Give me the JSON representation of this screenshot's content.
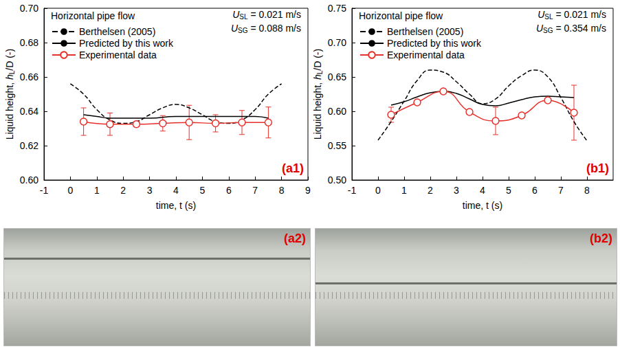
{
  "chart_data": [
    {
      "type": "line",
      "panel_label": "(a1)",
      "annotation": "Horizontal pipe flow",
      "conditions": [
        {
          "symbol": "U",
          "subscript": "SL",
          "text": " = 0.021 m/s"
        },
        {
          "symbol": "U",
          "subscript": "SG",
          "text": " = 0.088 m/s"
        }
      ],
      "x_label": "time, t (s)",
      "y_label": {
        "text": "Liquid height, ",
        "var": "h",
        "sub": "L",
        "rest": "/D (-)"
      },
      "xlim": [
        -1,
        9
      ],
      "xticks": [
        -1,
        0,
        1,
        2,
        3,
        4,
        5,
        6,
        7,
        8,
        9
      ],
      "ylim": [
        0.6,
        0.7
      ],
      "yticks": [
        {
          "value": 0.6,
          "label": "0.60"
        },
        {
          "value": 0.62,
          "label": "0.62"
        },
        {
          "value": 0.64,
          "label": "0.64"
        },
        {
          "value": 0.66,
          "label": "0.66"
        },
        {
          "value": 0.68,
          "label": "0.68"
        },
        {
          "value": 0.7,
          "label": "0.70"
        }
      ],
      "grid": false,
      "legend": "top-left",
      "series": [
        {
          "name": "Berthelsen (2005)",
          "color": "#000000",
          "line_style": "dashed",
          "marker": "none",
          "x": [
            0,
            0.5,
            1,
            1.5,
            2,
            2.5,
            3,
            3.5,
            4,
            4.5,
            5,
            5.5,
            6,
            6.5,
            7,
            7.5,
            8
          ],
          "values": [
            0.656,
            0.65,
            0.641,
            0.635,
            0.633,
            0.634,
            0.638,
            0.642,
            0.644,
            0.642,
            0.638,
            0.634,
            0.633,
            0.635,
            0.641,
            0.65,
            0.656
          ]
        },
        {
          "name": "Predicted by this work",
          "color": "#000000",
          "line_style": "solid",
          "marker": "none",
          "x": [
            0.5,
            1,
            1.5,
            2,
            3,
            4,
            5,
            6,
            7,
            7.5
          ],
          "values": [
            0.638,
            0.637,
            0.636,
            0.636,
            0.636,
            0.637,
            0.637,
            0.637,
            0.637,
            0.636
          ]
        },
        {
          "name": "Experimental data",
          "color": "#e8302a",
          "line_style": "solid",
          "marker": "circle",
          "x": [
            0.5,
            1.5,
            2.5,
            3.5,
            4.5,
            5.5,
            6.5,
            7.5
          ],
          "values": [
            0.634,
            0.6325,
            0.6325,
            0.633,
            0.6335,
            0.633,
            0.6335,
            0.6335
          ],
          "errors": [
            0.008,
            0.0065,
            0.0015,
            0.0045,
            0.01,
            0.005,
            0.007,
            0.009
          ]
        }
      ]
    },
    {
      "type": "line",
      "panel_label": "(b1)",
      "annotation": "Horizontal pipe flow",
      "conditions": [
        {
          "symbol": "U",
          "subscript": "SL",
          "text": " = 0.021 m/s"
        },
        {
          "symbol": "U",
          "subscript": "SG",
          "text": " = 0.354 m/s"
        }
      ],
      "x_label": "time, t (s)",
      "y_label": {
        "text": "Liquid height, ",
        "var": "h",
        "sub": "L",
        "rest": "/D (-)"
      },
      "xlim": [
        -1,
        9
      ],
      "xticks": [
        -1,
        0,
        1,
        2,
        3,
        4,
        5,
        6,
        7,
        8
      ],
      "ylim": [
        0.5,
        0.75
      ],
      "yticks": [
        {
          "value": 0.5,
          "label": "0.50"
        },
        {
          "value": 0.55,
          "label": "0.55"
        },
        {
          "value": 0.6,
          "label": "0.60"
        },
        {
          "value": 0.65,
          "label": "0.65"
        },
        {
          "value": 0.7,
          "label": "0.70"
        },
        {
          "value": 0.75,
          "label": "0.75"
        }
      ],
      "grid": false,
      "legend": "top-left",
      "series": [
        {
          "name": "Berthelsen (2005)",
          "color": "#000000",
          "line_style": "dashed",
          "marker": "none",
          "x": [
            0,
            0.5,
            1,
            1.5,
            2,
            2.5,
            3,
            3.5,
            4,
            4.5,
            5,
            5.5,
            6,
            6.5,
            7,
            7.5,
            8
          ],
          "values": [
            0.558,
            0.585,
            0.615,
            0.645,
            0.66,
            0.657,
            0.643,
            0.625,
            0.611,
            0.618,
            0.637,
            0.652,
            0.66,
            0.65,
            0.62,
            0.585,
            0.557
          ]
        },
        {
          "name": "Predicted by this work",
          "color": "#000000",
          "line_style": "solid",
          "marker": "none",
          "x": [
            0.5,
            1,
            1.5,
            2,
            2.5,
            3,
            3.5,
            4,
            4.5,
            5,
            5.5,
            6,
            6.5,
            7,
            7.5
          ],
          "values": [
            0.609,
            0.614,
            0.621,
            0.627,
            0.629,
            0.626,
            0.618,
            0.61,
            0.608,
            0.612,
            0.617,
            0.621,
            0.622,
            0.621,
            0.62
          ]
        },
        {
          "name": "Experimental data",
          "color": "#e8302a",
          "line_style": "solid",
          "marker": "circle",
          "x": [
            0.5,
            1.5,
            2.5,
            3.5,
            4.5,
            5.5,
            6.5,
            7.5
          ],
          "values": [
            0.595,
            0.613,
            0.629,
            0.599,
            0.586,
            0.594,
            0.616,
            0.598
          ],
          "errors": [
            0.011,
            0.002,
            0.002,
            0.002,
            0.02,
            0.002,
            0.002,
            0.04
          ]
        }
      ]
    }
  ],
  "photo_labels": [
    "(a2)",
    "(b2)"
  ]
}
